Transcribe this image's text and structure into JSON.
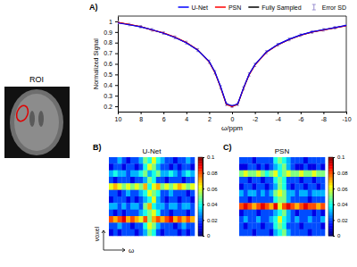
{
  "chart_data": [
    {
      "type": "image",
      "title": "ROI"
    },
    {
      "type": "line",
      "panel_label": "A)",
      "xlabel": "ω/ppm",
      "ylabel": "Normalized Signal",
      "legend": "top",
      "xlim": [
        10,
        -10
      ],
      "xticks": [
        10,
        8,
        6,
        4,
        2,
        0,
        -2,
        -4,
        -6,
        -8,
        -10
      ],
      "ylim": [
        0.15,
        1.05
      ],
      "yticks": [
        0.2,
        0.3,
        0.4,
        0.5,
        0.6,
        0.7,
        0.8,
        0.9,
        1
      ],
      "x": [
        10,
        9,
        8,
        7,
        6,
        5,
        4,
        3,
        2,
        1.5,
        1,
        0.5,
        0,
        -0.5,
        -1,
        -1.5,
        -2,
        -3,
        -4,
        -5,
        -6,
        -7,
        -8,
        -9,
        -10
      ],
      "series": [
        {
          "name": "U-Net",
          "color": "#0000ff",
          "values": [
            0.985,
            0.968,
            0.948,
            0.922,
            0.888,
            0.848,
            0.798,
            0.728,
            0.622,
            0.525,
            0.385,
            0.225,
            0.205,
            0.224,
            0.372,
            0.503,
            0.592,
            0.712,
            0.782,
            0.832,
            0.872,
            0.902,
            0.922,
            0.942,
            0.962
          ]
        },
        {
          "name": "PSN",
          "color": "#ff0000",
          "values": [
            0.99,
            0.972,
            0.951,
            0.919,
            0.891,
            0.851,
            0.801,
            0.731,
            0.618,
            0.519,
            0.378,
            0.219,
            0.198,
            0.221,
            0.368,
            0.498,
            0.588,
            0.709,
            0.779,
            0.829,
            0.869,
            0.899,
            0.919,
            0.939,
            0.959
          ]
        },
        {
          "name": "Fully Sampled",
          "color": "#000000",
          "values": [
            0.99,
            0.97,
            0.95,
            0.92,
            0.89,
            0.85,
            0.8,
            0.73,
            0.62,
            0.52,
            0.38,
            0.22,
            0.2,
            0.22,
            0.37,
            0.5,
            0.59,
            0.71,
            0.78,
            0.83,
            0.87,
            0.9,
            0.92,
            0.94,
            0.96
          ]
        }
      ],
      "error_sd": {
        "name": "Error SD",
        "color": "#9a8fd0",
        "values": [
          0.012,
          0.011,
          0.011,
          0.012,
          0.012,
          0.013,
          0.013,
          0.014,
          0.015,
          0.016,
          0.015,
          0.012,
          0.011,
          0.012,
          0.015,
          0.016,
          0.015,
          0.014,
          0.013,
          0.013,
          0.012,
          0.012,
          0.012,
          0.011,
          0.011
        ]
      }
    },
    {
      "type": "heatmap",
      "panel_label": "B)",
      "title": "U-Net",
      "xlabel": "ω",
      "ylabel": "voxel",
      "tick_labels": false,
      "cells": [
        [
          0.02,
          0.02,
          0.03,
          0.02,
          0.01,
          0.02,
          0.02,
          0.03,
          0.05,
          0.04,
          0.06,
          0.04,
          0.03,
          0.02,
          0.02,
          0.01,
          0.02,
          0.02,
          0.03,
          0.02
        ],
        [
          0.01,
          0.02,
          0.02,
          0.01,
          0.02,
          0.02,
          0.01,
          0.02,
          0.04,
          0.06,
          0.05,
          0.03,
          0.02,
          0.02,
          0.01,
          0.02,
          0.01,
          0.02,
          0.02,
          0.01
        ],
        [
          0.03,
          0.04,
          0.03,
          0.03,
          0.02,
          0.03,
          0.03,
          0.04,
          0.05,
          0.03,
          0.04,
          0.05,
          0.03,
          0.03,
          0.04,
          0.03,
          0.02,
          0.03,
          0.04,
          0.03
        ],
        [
          0.02,
          0.01,
          0.02,
          0.02,
          0.02,
          0.01,
          0.02,
          0.02,
          0.03,
          0.05,
          0.04,
          0.02,
          0.02,
          0.01,
          0.02,
          0.02,
          0.02,
          0.01,
          0.02,
          0.02
        ],
        [
          0.06,
          0.07,
          0.06,
          0.05,
          0.06,
          0.05,
          0.06,
          0.05,
          0.07,
          0.04,
          0.06,
          0.07,
          0.05,
          0.06,
          0.05,
          0.06,
          0.07,
          0.06,
          0.05,
          0.06
        ],
        [
          0.02,
          0.02,
          0.01,
          0.02,
          0.03,
          0.02,
          0.02,
          0.03,
          0.04,
          0.06,
          0.05,
          0.04,
          0.02,
          0.02,
          0.03,
          0.02,
          0.02,
          0.02,
          0.01,
          0.02
        ],
        [
          0.01,
          0.02,
          0.02,
          0.02,
          0.01,
          0.02,
          0.01,
          0.02,
          0.03,
          0.04,
          0.06,
          0.03,
          0.02,
          0.01,
          0.02,
          0.02,
          0.01,
          0.02,
          0.02,
          0.01
        ],
        [
          0.03,
          0.03,
          0.02,
          0.03,
          0.02,
          0.03,
          0.03,
          0.02,
          0.05,
          0.07,
          0.04,
          0.03,
          0.03,
          0.02,
          0.03,
          0.03,
          0.02,
          0.03,
          0.03,
          0.02
        ],
        [
          0.02,
          0.01,
          0.02,
          0.01,
          0.02,
          0.02,
          0.02,
          0.03,
          0.04,
          0.05,
          0.06,
          0.04,
          0.02,
          0.02,
          0.01,
          0.02,
          0.02,
          0.02,
          0.01,
          0.02
        ],
        [
          0.08,
          0.07,
          0.08,
          0.09,
          0.07,
          0.08,
          0.07,
          0.06,
          0.08,
          0.05,
          0.07,
          0.08,
          0.07,
          0.08,
          0.09,
          0.07,
          0.08,
          0.07,
          0.08,
          0.07
        ],
        [
          0.02,
          0.02,
          0.03,
          0.02,
          0.02,
          0.01,
          0.02,
          0.02,
          0.04,
          0.06,
          0.05,
          0.03,
          0.02,
          0.02,
          0.02,
          0.01,
          0.02,
          0.03,
          0.02,
          0.02
        ],
        [
          0.01,
          0.02,
          0.01,
          0.02,
          0.02,
          0.02,
          0.01,
          0.02,
          0.03,
          0.05,
          0.04,
          0.02,
          0.01,
          0.02,
          0.02,
          0.02,
          0.01,
          0.02,
          0.01,
          0.02
        ]
      ],
      "colorbar": {
        "range": [
          0,
          0.1
        ],
        "ticks": [
          0,
          0.02,
          0.04,
          0.06,
          0.08,
          0.1
        ]
      }
    },
    {
      "type": "heatmap",
      "panel_label": "C)",
      "title": "PSN",
      "tick_labels": false,
      "cells": [
        [
          0.02,
          0.02,
          0.02,
          0.01,
          0.02,
          0.02,
          0.02,
          0.02,
          0.04,
          0.05,
          0.04,
          0.03,
          0.02,
          0.02,
          0.02,
          0.01,
          0.02,
          0.02,
          0.02,
          0.02
        ],
        [
          0.01,
          0.01,
          0.02,
          0.02,
          0.01,
          0.02,
          0.01,
          0.02,
          0.03,
          0.04,
          0.05,
          0.03,
          0.02,
          0.01,
          0.01,
          0.02,
          0.01,
          0.01,
          0.02,
          0.01
        ],
        [
          0.05,
          0.06,
          0.05,
          0.05,
          0.06,
          0.05,
          0.04,
          0.05,
          0.06,
          0.04,
          0.05,
          0.06,
          0.05,
          0.05,
          0.06,
          0.05,
          0.05,
          0.06,
          0.05,
          0.05
        ],
        [
          0.02,
          0.02,
          0.01,
          0.02,
          0.02,
          0.01,
          0.02,
          0.02,
          0.04,
          0.05,
          0.04,
          0.02,
          0.02,
          0.02,
          0.01,
          0.02,
          0.02,
          0.01,
          0.02,
          0.02
        ],
        [
          0.01,
          0.02,
          0.02,
          0.01,
          0.02,
          0.02,
          0.01,
          0.02,
          0.03,
          0.05,
          0.04,
          0.02,
          0.01,
          0.02,
          0.02,
          0.01,
          0.02,
          0.02,
          0.01,
          0.02
        ],
        [
          0.03,
          0.02,
          0.03,
          0.03,
          0.02,
          0.03,
          0.02,
          0.03,
          0.05,
          0.06,
          0.05,
          0.03,
          0.03,
          0.02,
          0.03,
          0.03,
          0.02,
          0.03,
          0.03,
          0.03
        ],
        [
          0.02,
          0.02,
          0.01,
          0.02,
          0.02,
          0.02,
          0.02,
          0.02,
          0.04,
          0.05,
          0.05,
          0.03,
          0.02,
          0.02,
          0.02,
          0.02,
          0.01,
          0.02,
          0.02,
          0.02
        ],
        [
          0.08,
          0.09,
          0.08,
          0.07,
          0.08,
          0.09,
          0.08,
          0.07,
          0.09,
          0.06,
          0.08,
          0.09,
          0.08,
          0.07,
          0.08,
          0.09,
          0.08,
          0.08,
          0.07,
          0.08
        ],
        [
          0.01,
          0.02,
          0.02,
          0.02,
          0.01,
          0.02,
          0.02,
          0.02,
          0.03,
          0.04,
          0.05,
          0.03,
          0.02,
          0.01,
          0.02,
          0.02,
          0.02,
          0.01,
          0.02,
          0.01
        ],
        [
          0.02,
          0.03,
          0.02,
          0.02,
          0.03,
          0.02,
          0.02,
          0.03,
          0.04,
          0.06,
          0.04,
          0.03,
          0.02,
          0.03,
          0.02,
          0.02,
          0.03,
          0.02,
          0.02,
          0.03
        ],
        [
          0.02,
          0.01,
          0.02,
          0.02,
          0.02,
          0.01,
          0.02,
          0.02,
          0.04,
          0.05,
          0.04,
          0.02,
          0.02,
          0.02,
          0.01,
          0.02,
          0.02,
          0.02,
          0.02,
          0.01
        ],
        [
          0.02,
          0.02,
          0.02,
          0.01,
          0.02,
          0.02,
          0.02,
          0.01,
          0.03,
          0.04,
          0.05,
          0.03,
          0.02,
          0.02,
          0.02,
          0.02,
          0.01,
          0.02,
          0.02,
          0.02
        ]
      ],
      "colorbar": {
        "range": [
          0,
          0.1
        ],
        "ticks": [
          0,
          0.02,
          0.04,
          0.06,
          0.08,
          0.1
        ]
      }
    }
  ]
}
